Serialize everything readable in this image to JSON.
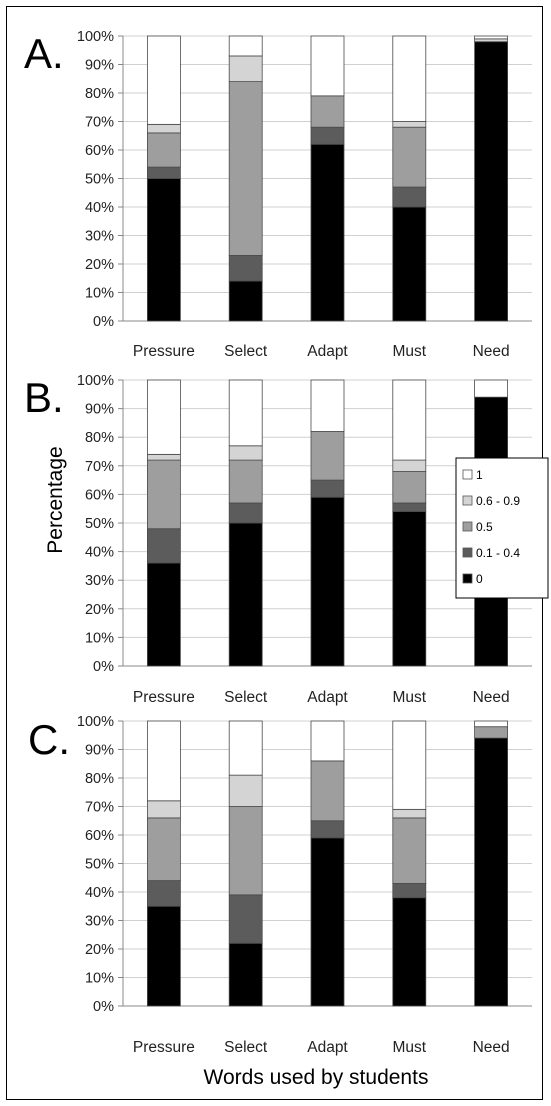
{
  "figure": {
    "xlabel": "Words used by students",
    "ylabel": "Percentage"
  },
  "legend": {
    "items": [
      {
        "label": "1",
        "color": "#ffffff"
      },
      {
        "label": "0.6 - 0.9",
        "color": "#d4d4d4"
      },
      {
        "label": "0.5",
        "color": "#9e9e9e"
      },
      {
        "label": "0.1 - 0.4",
        "color": "#5c5c5c"
      },
      {
        "label": "0",
        "color": "#000000"
      }
    ]
  },
  "chart_data": [
    {
      "type": "bar",
      "stacked": true,
      "panel": "A.",
      "categories": [
        "Pressure",
        "Select",
        "Adapt",
        "Must",
        "Need"
      ],
      "ylim": [
        0,
        100
      ],
      "yticks": [
        "0%",
        "10%",
        "20%",
        "30%",
        "40%",
        "50%",
        "60%",
        "70%",
        "80%",
        "90%",
        "100%"
      ],
      "series": [
        {
          "name": "0",
          "values": [
            50,
            14,
            62,
            40,
            98
          ]
        },
        {
          "name": "0.1 - 0.4",
          "values": [
            4,
            9,
            6,
            7,
            0
          ]
        },
        {
          "name": "0.5",
          "values": [
            12,
            61,
            11,
            21,
            0
          ]
        },
        {
          "name": "0.6 - 0.9",
          "values": [
            3,
            9,
            0,
            2,
            1
          ]
        },
        {
          "name": "1",
          "values": [
            31,
            7,
            21,
            30,
            1
          ]
        }
      ]
    },
    {
      "type": "bar",
      "stacked": true,
      "panel": "B.",
      "categories": [
        "Pressure",
        "Select",
        "Adapt",
        "Must",
        "Need"
      ],
      "ylim": [
        0,
        100
      ],
      "yticks": [
        "0%",
        "10%",
        "20%",
        "30%",
        "40%",
        "50%",
        "60%",
        "70%",
        "80%",
        "90%",
        "100%"
      ],
      "series": [
        {
          "name": "0",
          "values": [
            36,
            50,
            59,
            54,
            94
          ]
        },
        {
          "name": "0.1 - 0.4",
          "values": [
            12,
            7,
            6,
            3,
            0
          ]
        },
        {
          "name": "0.5",
          "values": [
            24,
            15,
            17,
            11,
            0
          ]
        },
        {
          "name": "0.6 - 0.9",
          "values": [
            2,
            5,
            0,
            4,
            0
          ]
        },
        {
          "name": "1",
          "values": [
            26,
            23,
            18,
            28,
            6
          ]
        }
      ]
    },
    {
      "type": "bar",
      "stacked": true,
      "panel": "C.",
      "categories": [
        "Pressure",
        "Select",
        "Adapt",
        "Must",
        "Need"
      ],
      "ylim": [
        0,
        100
      ],
      "yticks": [
        "0%",
        "10%",
        "20%",
        "30%",
        "40%",
        "50%",
        "60%",
        "70%",
        "80%",
        "90%",
        "100%"
      ],
      "series": [
        {
          "name": "0",
          "values": [
            35,
            22,
            59,
            38,
            94
          ]
        },
        {
          "name": "0.1 - 0.4",
          "values": [
            9,
            17,
            6,
            5,
            0
          ]
        },
        {
          "name": "0.5",
          "values": [
            22,
            31,
            21,
            23,
            4
          ]
        },
        {
          "name": "0.6 - 0.9",
          "values": [
            6,
            11,
            0,
            3,
            0
          ]
        },
        {
          "name": "1",
          "values": [
            28,
            19,
            14,
            31,
            2
          ]
        }
      ]
    }
  ]
}
